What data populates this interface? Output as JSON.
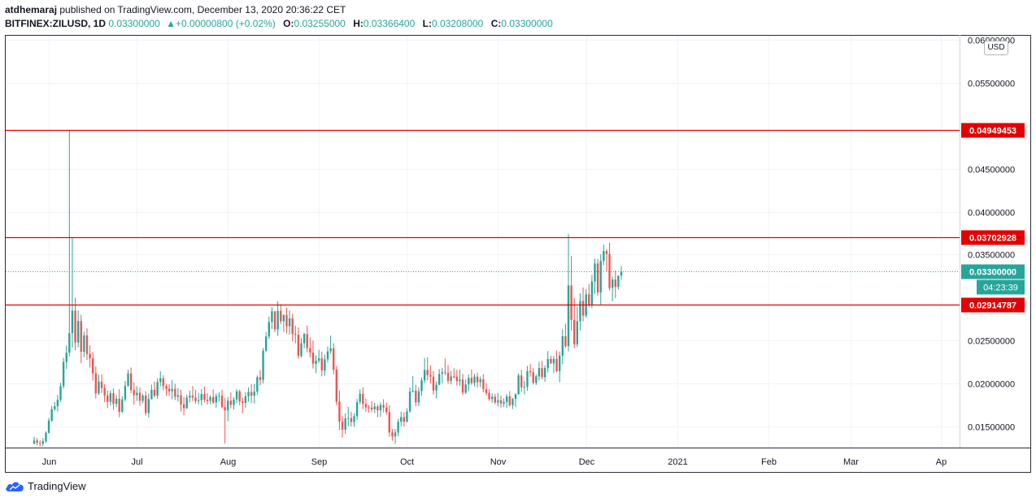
{
  "header": {
    "author": "atdhemaraj",
    "published": "published on TradingView.com, December 13, 2020 20:36:22 CET",
    "symbol": "BITFINEX:ZILUSD, 1D",
    "last": "0.03300000",
    "change": "+0.00000800 (+0.02%)",
    "open_label": "O:",
    "open": "0.03255000",
    "high_label": "H:",
    "high": "0.03366400",
    "low_label": "L:",
    "low": "0.03208000",
    "close_label": "C:",
    "close": "0.03300000"
  },
  "currency_button": "USD",
  "brand": "TradingView",
  "colors": {
    "up": "#26a69a",
    "down": "#ef5350",
    "level": "#e50000",
    "grid": "#f0f3fa"
  },
  "chart_data": {
    "type": "candlestick",
    "ylim": [
      0.0125,
      0.0605
    ],
    "y_ticks": [
      {
        "value": 0.015,
        "label": "0.01500000"
      },
      {
        "value": 0.02,
        "label": "0.02000000"
      },
      {
        "value": 0.025,
        "label": "0.02500000"
      },
      {
        "value": 0.035,
        "label": "0.03500000"
      },
      {
        "value": 0.04,
        "label": "0.04000000"
      },
      {
        "value": 0.045,
        "label": "0.04500000"
      },
      {
        "value": 0.055,
        "label": "0.05500000"
      },
      {
        "value": 0.06,
        "label": "0.06000000"
      }
    ],
    "x_ticks": [
      {
        "day": 5,
        "label": "Jun"
      },
      {
        "day": 35,
        "label": "Jul"
      },
      {
        "day": 66,
        "label": "Aug"
      },
      {
        "day": 97,
        "label": "Sep"
      },
      {
        "day": 127,
        "label": "Oct"
      },
      {
        "day": 158,
        "label": "Nov"
      },
      {
        "day": 188,
        "label": "Dec"
      },
      {
        "day": 219,
        "label": "2021"
      },
      {
        "day": 250,
        "label": "Feb"
      },
      {
        "day": 278,
        "label": "Mar"
      },
      {
        "day": 309,
        "label": "Ap"
      }
    ],
    "levels": [
      {
        "value": 0.04949453,
        "label": "0.04949453"
      },
      {
        "value": 0.03702928,
        "label": "0.03702928"
      },
      {
        "value": 0.02914787,
        "label": "0.02914787"
      }
    ],
    "last_price": {
      "value": 0.033,
      "label": "0.03300000",
      "countdown": "04:23:39"
    },
    "series_start_day": 0,
    "candles": [
      [
        0.01292,
        0.01378,
        0.01304,
        0.01332
      ],
      [
        0.01332,
        0.01362,
        0.01278,
        0.01305
      ],
      [
        0.01305,
        0.01334,
        0.01264,
        0.01298
      ],
      [
        0.01298,
        0.01361,
        0.01263,
        0.01325
      ],
      [
        0.01325,
        0.01441,
        0.01303,
        0.01422
      ],
      [
        0.01422,
        0.01595,
        0.01414,
        0.01564
      ],
      [
        0.01564,
        0.01735,
        0.0155,
        0.01697
      ],
      [
        0.01697,
        0.01781,
        0.01677,
        0.01732
      ],
      [
        0.01732,
        0.01864,
        0.01671,
        0.01806
      ],
      [
        0.01806,
        0.02005,
        0.01785,
        0.01966
      ],
      [
        0.01966,
        0.02296,
        0.01938,
        0.02249
      ],
      [
        0.02249,
        0.02439,
        0.02165,
        0.02356
      ],
      [
        0.02356,
        0.04949,
        0.02312,
        0.02584
      ],
      [
        0.02584,
        0.03701,
        0.02415,
        0.02846
      ],
      [
        0.02846,
        0.02998,
        0.02385,
        0.02474
      ],
      [
        0.02474,
        0.02849,
        0.02418,
        0.02725
      ],
      [
        0.02725,
        0.02798,
        0.02234,
        0.02367
      ],
      [
        0.02367,
        0.02601,
        0.02305,
        0.02557
      ],
      [
        0.02557,
        0.02641,
        0.02271,
        0.02341
      ],
      [
        0.02341,
        0.02442,
        0.02181,
        0.02289
      ],
      [
        0.02289,
        0.02362,
        0.0203,
        0.02115
      ],
      [
        0.02115,
        0.02198,
        0.01821,
        0.01882
      ],
      [
        0.01882,
        0.02101,
        0.01863,
        0.02019
      ],
      [
        0.02019,
        0.02105,
        0.01886,
        0.01945
      ],
      [
        0.01945,
        0.01988,
        0.01782,
        0.01857
      ],
      [
        0.01857,
        0.01915,
        0.0171,
        0.01783
      ],
      [
        0.01783,
        0.01915,
        0.01739,
        0.01884
      ],
      [
        0.01884,
        0.01938,
        0.01691,
        0.01759
      ],
      [
        0.01759,
        0.01861,
        0.0172,
        0.0182
      ],
      [
        0.0182,
        0.0193,
        0.01604,
        0.01667
      ],
      [
        0.01667,
        0.01849,
        0.01652,
        0.01812
      ],
      [
        0.01812,
        0.02026,
        0.01787,
        0.0197
      ],
      [
        0.0197,
        0.02159,
        0.01956,
        0.02114
      ],
      [
        0.02114,
        0.02183,
        0.01886,
        0.0192
      ],
      [
        0.0192,
        0.02011,
        0.01751,
        0.0186
      ],
      [
        0.0186,
        0.01967,
        0.01795,
        0.0189
      ],
      [
        0.0189,
        0.01949,
        0.01737,
        0.01795
      ],
      [
        0.01795,
        0.01878,
        0.01767,
        0.01855
      ],
      [
        0.01855,
        0.01905,
        0.01623,
        0.01653
      ],
      [
        0.01653,
        0.01878,
        0.01601,
        0.01817
      ],
      [
        0.01817,
        0.01984,
        0.01809,
        0.01923
      ],
      [
        0.01923,
        0.02021,
        0.01835,
        0.01854
      ],
      [
        0.01854,
        0.02057,
        0.0182,
        0.02014
      ],
      [
        0.02014,
        0.0214,
        0.01966,
        0.02057
      ],
      [
        0.02057,
        0.02093,
        0.01916,
        0.01967
      ],
      [
        0.01967,
        0.01993,
        0.01854,
        0.01935
      ],
      [
        0.01935,
        0.01988,
        0.01852,
        0.01906
      ],
      [
        0.01906,
        0.02039,
        0.01813,
        0.01934
      ],
      [
        0.01934,
        0.01995,
        0.01804,
        0.01842
      ],
      [
        0.01842,
        0.01943,
        0.01783,
        0.0186
      ],
      [
        0.0186,
        0.01926,
        0.01673,
        0.01753
      ],
      [
        0.01753,
        0.01843,
        0.01625,
        0.01709
      ],
      [
        0.01709,
        0.01866,
        0.01699,
        0.01833
      ],
      [
        0.01833,
        0.01913,
        0.01777,
        0.01856
      ],
      [
        0.01856,
        0.01967,
        0.01792,
        0.01834
      ],
      [
        0.01834,
        0.01922,
        0.01763,
        0.01792
      ],
      [
        0.01792,
        0.01887,
        0.01755,
        0.01803
      ],
      [
        0.01803,
        0.01932,
        0.01739,
        0.01874
      ],
      [
        0.01874,
        0.01959,
        0.01777,
        0.01808
      ],
      [
        0.01808,
        0.01883,
        0.01752,
        0.01794
      ],
      [
        0.01794,
        0.01862,
        0.01756,
        0.01838
      ],
      [
        0.01838,
        0.01928,
        0.0176,
        0.01775
      ],
      [
        0.01775,
        0.01881,
        0.01711,
        0.01849
      ],
      [
        0.01849,
        0.01894,
        0.01785,
        0.01853
      ],
      [
        0.01853,
        0.01923,
        0.01707,
        0.01722
      ],
      [
        0.01722,
        0.01829,
        0.01298,
        0.01684
      ],
      [
        0.01684,
        0.01839,
        0.01557,
        0.01797
      ],
      [
        0.01797,
        0.01893,
        0.01708,
        0.01748
      ],
      [
        0.01748,
        0.01838,
        0.01694,
        0.01811
      ],
      [
        0.01811,
        0.01931,
        0.01766,
        0.01906
      ],
      [
        0.01906,
        0.01923,
        0.01743,
        0.01788
      ],
      [
        0.01788,
        0.0183,
        0.01648,
        0.0177
      ],
      [
        0.0177,
        0.01898,
        0.01715,
        0.01848
      ],
      [
        0.01848,
        0.0195,
        0.01785,
        0.01899
      ],
      [
        0.01899,
        0.01988,
        0.01766,
        0.01855
      ],
      [
        0.01855,
        0.01993,
        0.01763,
        0.01902
      ],
      [
        0.01902,
        0.0209,
        0.01863,
        0.02071
      ],
      [
        0.02071,
        0.02151,
        0.01974,
        0.02039
      ],
      [
        0.02039,
        0.02411,
        0.01997,
        0.02378
      ],
      [
        0.02378,
        0.02598,
        0.02362,
        0.02545
      ],
      [
        0.02545,
        0.02776,
        0.02514,
        0.02714
      ],
      [
        0.02714,
        0.02888,
        0.02632,
        0.02838
      ],
      [
        0.02838,
        0.02843,
        0.02596,
        0.02627
      ],
      [
        0.02627,
        0.02957,
        0.02552,
        0.02843
      ],
      [
        0.02843,
        0.02922,
        0.02686,
        0.02722
      ],
      [
        0.02722,
        0.02805,
        0.02598,
        0.02794
      ],
      [
        0.02794,
        0.02883,
        0.02581,
        0.02664
      ],
      [
        0.02664,
        0.02848,
        0.02566,
        0.02756
      ],
      [
        0.02756,
        0.02808,
        0.0249,
        0.02577
      ],
      [
        0.02577,
        0.02671,
        0.02464,
        0.02566
      ],
      [
        0.02566,
        0.02651,
        0.02286,
        0.02317
      ],
      [
        0.02317,
        0.02524,
        0.02298,
        0.02466
      ],
      [
        0.02466,
        0.02586,
        0.02408,
        0.02573
      ],
      [
        0.02573,
        0.02673,
        0.0236,
        0.02409
      ],
      [
        0.02409,
        0.02534,
        0.02299,
        0.02357
      ],
      [
        0.02357,
        0.02497,
        0.02172,
        0.02228
      ],
      [
        0.02228,
        0.02327,
        0.02118,
        0.02263
      ],
      [
        0.02263,
        0.02388,
        0.02235,
        0.02289
      ],
      [
        0.02289,
        0.02369,
        0.0208,
        0.02149
      ],
      [
        0.02149,
        0.02335,
        0.02087,
        0.02279
      ],
      [
        0.02279,
        0.02429,
        0.02239,
        0.02371
      ],
      [
        0.02371,
        0.02555,
        0.02344,
        0.02407
      ],
      [
        0.02407,
        0.02467,
        0.02106,
        0.02158
      ],
      [
        0.02158,
        0.02205,
        0.01743,
        0.01785
      ],
      [
        0.01785,
        0.01916,
        0.01454,
        0.01552
      ],
      [
        0.01552,
        0.01615,
        0.01367,
        0.01459
      ],
      [
        0.01459,
        0.0165,
        0.01411,
        0.0159
      ],
      [
        0.0159,
        0.01723,
        0.01501,
        0.01594
      ],
      [
        0.01594,
        0.01666,
        0.01496,
        0.01548
      ],
      [
        0.01548,
        0.01647,
        0.01491,
        0.01615
      ],
      [
        0.01615,
        0.01817,
        0.01575,
        0.01781
      ],
      [
        0.01781,
        0.01931,
        0.01751,
        0.01877
      ],
      [
        0.01877,
        0.01951,
        0.01698,
        0.01758
      ],
      [
        0.01758,
        0.01821,
        0.01668,
        0.01719
      ],
      [
        0.01719,
        0.01745,
        0.01657,
        0.01716
      ],
      [
        0.01716,
        0.01788,
        0.01663,
        0.01696
      ],
      [
        0.01696,
        0.01771,
        0.01652,
        0.01729
      ],
      [
        0.01729,
        0.01748,
        0.01603,
        0.01684
      ],
      [
        0.01684,
        0.01776,
        0.01608,
        0.01746
      ],
      [
        0.01746,
        0.01814,
        0.0166,
        0.01716
      ],
      [
        0.01716,
        0.01775,
        0.01634,
        0.01664
      ],
      [
        0.01664,
        0.01742,
        0.01377,
        0.01426
      ],
      [
        0.01426,
        0.01466,
        0.0133,
        0.0138
      ],
      [
        0.0138,
        0.01468,
        0.01295,
        0.01426
      ],
      [
        0.01426,
        0.01584,
        0.0138,
        0.0155
      ],
      [
        0.0155,
        0.01668,
        0.01499,
        0.01605
      ],
      [
        0.01605,
        0.01661,
        0.01497,
        0.01553
      ],
      [
        0.01553,
        0.01707,
        0.01543,
        0.01671
      ],
      [
        0.01671,
        0.01952,
        0.01655,
        0.01904
      ],
      [
        0.01904,
        0.02082,
        0.01889,
        0.01913
      ],
      [
        0.01913,
        0.01982,
        0.01731,
        0.01777
      ],
      [
        0.01777,
        0.01954,
        0.01732,
        0.01907
      ],
      [
        0.01907,
        0.02066,
        0.01855,
        0.02034
      ],
      [
        0.02034,
        0.02295,
        0.02,
        0.02155
      ],
      [
        0.02155,
        0.02304,
        0.02034,
        0.02095
      ],
      [
        0.02095,
        0.02209,
        0.01999,
        0.02076
      ],
      [
        0.02076,
        0.02141,
        0.01867,
        0.01915
      ],
      [
        0.01915,
        0.0202,
        0.01824,
        0.01982
      ],
      [
        0.01982,
        0.02165,
        0.01977,
        0.02109
      ],
      [
        0.02109,
        0.02178,
        0.01999,
        0.02127
      ],
      [
        0.02127,
        0.02288,
        0.02094,
        0.02123
      ],
      [
        0.02123,
        0.02212,
        0.01993,
        0.02027
      ],
      [
        0.02027,
        0.02145,
        0.01987,
        0.0208
      ],
      [
        0.0208,
        0.02175,
        0.02052,
        0.02076
      ],
      [
        0.02076,
        0.02157,
        0.01974,
        0.02024
      ],
      [
        0.02024,
        0.02162,
        0.0197,
        0.02042
      ],
      [
        0.02042,
        0.02108,
        0.01862,
        0.0189
      ],
      [
        0.0189,
        0.02045,
        0.01874,
        0.01986
      ],
      [
        0.01986,
        0.02103,
        0.01906,
        0.02062
      ],
      [
        0.02062,
        0.0216,
        0.01982,
        0.02003
      ],
      [
        0.02003,
        0.02108,
        0.01963,
        0.02077
      ],
      [
        0.02077,
        0.02125,
        0.01949,
        0.02012
      ],
      [
        0.02012,
        0.02078,
        0.01953,
        0.02046
      ],
      [
        0.02046,
        0.02104,
        0.01893,
        0.0193
      ],
      [
        0.0193,
        0.02003,
        0.01859,
        0.01886
      ],
      [
        0.01886,
        0.0193,
        0.01795,
        0.01815
      ],
      [
        0.01815,
        0.01881,
        0.01772,
        0.01843
      ],
      [
        0.01843,
        0.01876,
        0.01756,
        0.01776
      ],
      [
        0.01776,
        0.01884,
        0.01727,
        0.01802
      ],
      [
        0.01802,
        0.01856,
        0.01717,
        0.01764
      ],
      [
        0.01764,
        0.01826,
        0.01722,
        0.01782
      ],
      [
        0.01782,
        0.01873,
        0.01712,
        0.01848
      ],
      [
        0.01848,
        0.01908,
        0.01727,
        0.01744
      ],
      [
        0.01744,
        0.01828,
        0.017,
        0.01816
      ],
      [
        0.01816,
        0.01884,
        0.01724,
        0.01871
      ],
      [
        0.01871,
        0.02116,
        0.01867,
        0.02091
      ],
      [
        0.02091,
        0.02155,
        0.01899,
        0.01953
      ],
      [
        0.01953,
        0.02027,
        0.01869,
        0.0196
      ],
      [
        0.0196,
        0.02201,
        0.01911,
        0.02141
      ],
      [
        0.02141,
        0.02222,
        0.02076,
        0.02128
      ],
      [
        0.02128,
        0.02176,
        0.01983,
        0.02005
      ],
      [
        0.02005,
        0.02102,
        0.0198,
        0.0208
      ],
      [
        0.0208,
        0.0225,
        0.02032,
        0.02177
      ],
      [
        0.02177,
        0.02261,
        0.02045,
        0.02071
      ],
      [
        0.02071,
        0.02209,
        0.02017,
        0.02178
      ],
      [
        0.02178,
        0.02375,
        0.02125,
        0.02282
      ],
      [
        0.02282,
        0.02319,
        0.02225,
        0.02231
      ],
      [
        0.02231,
        0.02318,
        0.02119,
        0.02284
      ],
      [
        0.02284,
        0.02382,
        0.02128,
        0.0214
      ],
      [
        0.0214,
        0.02369,
        0.02011,
        0.02322
      ],
      [
        0.02322,
        0.0263,
        0.02221,
        0.02547
      ],
      [
        0.02547,
        0.02694,
        0.02413,
        0.02432
      ],
      [
        0.02432,
        0.03737,
        0.0237,
        0.0314
      ],
      [
        0.0314,
        0.03483,
        0.02614,
        0.02738
      ],
      [
        0.02738,
        0.02992,
        0.02408,
        0.02454
      ],
      [
        0.02454,
        0.02891,
        0.02419,
        0.02723
      ],
      [
        0.02723,
        0.03048,
        0.02616,
        0.02958
      ],
      [
        0.02958,
        0.03117,
        0.02721,
        0.02789
      ],
      [
        0.02789,
        0.03097,
        0.02765,
        0.03035
      ],
      [
        0.03035,
        0.03158,
        0.02883,
        0.02917
      ],
      [
        0.02917,
        0.03263,
        0.02874,
        0.03186
      ],
      [
        0.03186,
        0.03453,
        0.03041,
        0.03395
      ],
      [
        0.03395,
        0.03448,
        0.03021,
        0.03058
      ],
      [
        0.03058,
        0.03502,
        0.02915,
        0.03426
      ],
      [
        0.03426,
        0.03616,
        0.03375,
        0.03541
      ],
      [
        0.03541,
        0.03562,
        0.03306,
        0.03507
      ],
      [
        0.03507,
        0.03639,
        0.03081,
        0.0311
      ],
      [
        0.0311,
        0.03244,
        0.02954,
        0.03208
      ],
      [
        0.03208,
        0.03315,
        0.02992,
        0.03123
      ],
      [
        0.03123,
        0.0325,
        0.03092,
        0.03255
      ],
      [
        0.03255,
        0.03366,
        0.03208,
        0.033
      ]
    ]
  }
}
